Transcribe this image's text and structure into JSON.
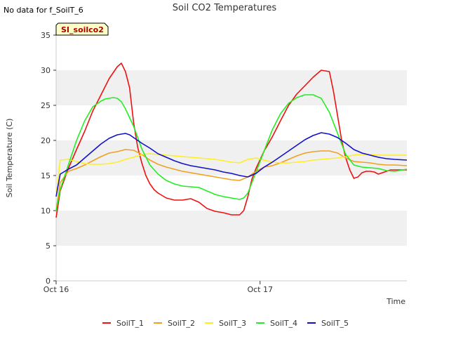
{
  "page": {
    "nodata_note": "No data for f_SoilT_6",
    "badge_label": "SI_soilco2"
  },
  "chart_data": {
    "type": "line",
    "title": "Soil CO2 Temperatures",
    "xlabel": "Time",
    "ylabel": "Soil Temperature (C)",
    "ylim": [
      0,
      35
    ],
    "xlim": [
      0,
      1.72
    ],
    "x_unit_note": "days since Oct 16 00:00",
    "yticks": [
      0,
      5,
      10,
      15,
      20,
      25,
      30,
      35
    ],
    "xticks": [
      {
        "value": 0,
        "label": "Oct 16"
      },
      {
        "value": 1,
        "label": "Oct 17"
      }
    ],
    "grid": "horizontal bands",
    "legend": "bottom-center",
    "series": [
      {
        "name": "SoilT_1",
        "color": "#ee1111",
        "x": [
          0,
          0.02,
          0.06,
          0.1,
          0.14,
          0.18,
          0.22,
          0.26,
          0.3,
          0.32,
          0.34,
          0.36,
          0.38,
          0.4,
          0.42,
          0.44,
          0.46,
          0.48,
          0.5,
          0.54,
          0.58,
          0.62,
          0.66,
          0.7,
          0.74,
          0.78,
          0.82,
          0.86,
          0.9,
          0.92,
          0.94,
          0.96,
          0.98,
          1.02,
          1.06,
          1.1,
          1.14,
          1.18,
          1.22,
          1.26,
          1.3,
          1.34,
          1.36,
          1.38,
          1.4,
          1.42,
          1.44,
          1.46,
          1.48,
          1.5,
          1.52,
          1.54,
          1.56,
          1.58,
          1.6,
          1.62,
          1.64,
          1.66,
          1.68,
          1.72
        ],
        "values": [
          9.0,
          12.8,
          16.0,
          18.7,
          21.3,
          24.2,
          26.5,
          28.8,
          30.5,
          31.0,
          29.8,
          27.5,
          22.5,
          19.0,
          16.8,
          15.0,
          13.8,
          13.0,
          12.5,
          11.8,
          11.5,
          11.5,
          11.7,
          11.2,
          10.3,
          9.9,
          9.7,
          9.4,
          9.4,
          10.0,
          12.0,
          14.5,
          16.0,
          18.5,
          20.5,
          22.8,
          25.0,
          26.6,
          27.8,
          29.0,
          30.0,
          29.8,
          27.0,
          23.5,
          20.0,
          17.5,
          15.8,
          14.6,
          14.8,
          15.4,
          15.6,
          15.6,
          15.5,
          15.2,
          15.4,
          15.6,
          15.8,
          15.8,
          15.8,
          15.8
        ]
      },
      {
        "name": "SoilT_2",
        "color": "#f0a020",
        "x": [
          0,
          0.02,
          0.06,
          0.1,
          0.14,
          0.18,
          0.22,
          0.26,
          0.3,
          0.34,
          0.38,
          0.42,
          0.46,
          0.5,
          0.54,
          0.58,
          0.62,
          0.66,
          0.7,
          0.74,
          0.78,
          0.82,
          0.86,
          0.9,
          0.94,
          0.98,
          1.02,
          1.06,
          1.1,
          1.14,
          1.18,
          1.22,
          1.26,
          1.3,
          1.34,
          1.38,
          1.42,
          1.46,
          1.5,
          1.54,
          1.58,
          1.62,
          1.66,
          1.72
        ],
        "values": [
          10.0,
          14.0,
          15.6,
          16.0,
          16.5,
          17.1,
          17.7,
          18.2,
          18.4,
          18.7,
          18.6,
          18.0,
          17.2,
          16.6,
          16.2,
          15.9,
          15.6,
          15.4,
          15.2,
          15.0,
          14.8,
          14.6,
          14.4,
          14.3,
          14.8,
          15.6,
          16.2,
          16.4,
          16.8,
          17.3,
          17.8,
          18.2,
          18.4,
          18.5,
          18.5,
          18.2,
          17.5,
          17.0,
          16.9,
          16.8,
          16.6,
          16.5,
          16.5,
          16.4
        ]
      },
      {
        "name": "SoilT_3",
        "color": "#ffee22",
        "x": [
          0,
          0.02,
          0.06,
          0.1,
          0.14,
          0.18,
          0.22,
          0.26,
          0.3,
          0.34,
          0.38,
          0.42,
          0.46,
          0.5,
          0.54,
          0.58,
          0.62,
          0.66,
          0.7,
          0.74,
          0.78,
          0.82,
          0.86,
          0.9,
          0.94,
          0.98,
          1.02,
          1.06,
          1.1,
          1.14,
          1.18,
          1.22,
          1.26,
          1.3,
          1.34,
          1.38,
          1.42,
          1.46,
          1.5,
          1.54,
          1.58,
          1.62,
          1.66,
          1.72
        ],
        "values": [
          12.0,
          17.2,
          17.3,
          17.0,
          16.7,
          16.6,
          16.6,
          16.7,
          16.9,
          17.3,
          17.6,
          18.0,
          18.1,
          18.0,
          17.9,
          17.8,
          17.7,
          17.6,
          17.5,
          17.4,
          17.3,
          17.1,
          16.9,
          16.8,
          17.3,
          17.5,
          17.2,
          16.9,
          16.8,
          16.8,
          16.9,
          17.0,
          17.2,
          17.3,
          17.4,
          17.5,
          17.7,
          17.9,
          18.0,
          18.0,
          17.9,
          17.9,
          17.9,
          17.9
        ]
      },
      {
        "name": "SoilT_4",
        "color": "#22ee22",
        "x": [
          0,
          0.02,
          0.06,
          0.1,
          0.14,
          0.18,
          0.22,
          0.24,
          0.26,
          0.28,
          0.3,
          0.32,
          0.34,
          0.38,
          0.42,
          0.46,
          0.5,
          0.54,
          0.58,
          0.62,
          0.66,
          0.7,
          0.74,
          0.78,
          0.82,
          0.86,
          0.9,
          0.92,
          0.94,
          0.98,
          1.02,
          1.06,
          1.1,
          1.14,
          1.18,
          1.22,
          1.26,
          1.3,
          1.34,
          1.38,
          1.42,
          1.46,
          1.5,
          1.54,
          1.58,
          1.62,
          1.66,
          1.72
        ],
        "values": [
          10.0,
          13.0,
          16.5,
          20.0,
          22.8,
          24.8,
          25.6,
          25.9,
          26.0,
          26.1,
          26.0,
          25.5,
          24.5,
          22.0,
          18.8,
          16.5,
          15.2,
          14.3,
          13.8,
          13.5,
          13.4,
          13.3,
          12.8,
          12.3,
          12.0,
          11.8,
          11.6,
          11.8,
          12.5,
          15.5,
          18.5,
          21.5,
          23.8,
          25.3,
          26.1,
          26.5,
          26.5,
          26.0,
          24.0,
          21.0,
          18.0,
          16.5,
          16.2,
          16.1,
          16.0,
          15.7,
          15.6,
          15.9
        ]
      },
      {
        "name": "SoilT_5",
        "color": "#1111cc",
        "x": [
          0,
          0.02,
          0.06,
          0.1,
          0.14,
          0.18,
          0.22,
          0.26,
          0.3,
          0.32,
          0.34,
          0.36,
          0.38,
          0.42,
          0.46,
          0.5,
          0.54,
          0.58,
          0.62,
          0.66,
          0.7,
          0.74,
          0.78,
          0.82,
          0.86,
          0.9,
          0.94,
          0.98,
          1.02,
          1.06,
          1.1,
          1.14,
          1.18,
          1.22,
          1.26,
          1.3,
          1.34,
          1.38,
          1.42,
          1.46,
          1.5,
          1.54,
          1.58,
          1.62,
          1.66,
          1.72
        ],
        "values": [
          12.0,
          15.2,
          15.9,
          16.5,
          17.5,
          18.5,
          19.5,
          20.3,
          20.8,
          20.9,
          21.0,
          20.8,
          20.4,
          19.6,
          18.9,
          18.1,
          17.6,
          17.1,
          16.7,
          16.4,
          16.2,
          16.0,
          15.8,
          15.5,
          15.3,
          15.0,
          14.8,
          15.3,
          16.2,
          16.9,
          17.7,
          18.5,
          19.3,
          20.1,
          20.7,
          21.1,
          20.9,
          20.4,
          19.6,
          18.7,
          18.2,
          17.9,
          17.6,
          17.4,
          17.3,
          17.2
        ]
      }
    ]
  }
}
